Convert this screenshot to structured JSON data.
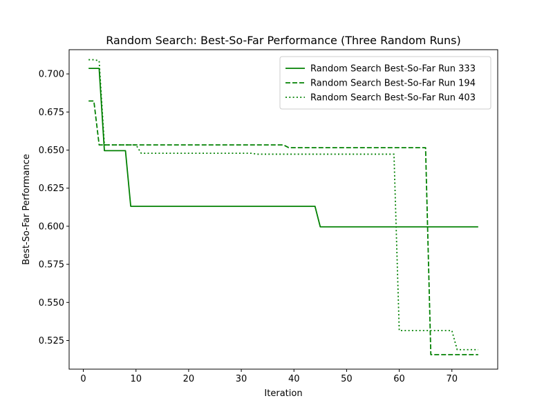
{
  "chart_data": {
    "type": "line",
    "title": "Random Search: Best-So-Far Performance (Three Random Runs)",
    "xlabel": "Iteration",
    "ylabel": "Best-So-Far Performance",
    "xlim": [
      -2.7,
      78.7
    ],
    "ylim": [
      0.5062,
      0.7159
    ],
    "xticks": [
      0,
      10,
      20,
      30,
      40,
      50,
      60,
      70
    ],
    "xtick_labels": [
      "0",
      "10",
      "20",
      "30",
      "40",
      "50",
      "60",
      "70"
    ],
    "yticks": [
      0.525,
      0.55,
      0.575,
      0.6,
      0.625,
      0.65,
      0.675,
      0.7
    ],
    "ytick_labels": [
      "0.525",
      "0.550",
      "0.575",
      "0.600",
      "0.625",
      "0.650",
      "0.675",
      "0.700"
    ],
    "grid": false,
    "legend_position": "upper right",
    "series": [
      {
        "name": "Random Search Best-So-Far Run 333",
        "color": "#008000",
        "dash": "solid",
        "points": [
          [
            1,
            0.7036
          ],
          [
            3,
            0.7036
          ],
          [
            4,
            0.6496
          ],
          [
            8,
            0.6496
          ],
          [
            9,
            0.6131
          ],
          [
            44,
            0.6131
          ],
          [
            45,
            0.5996
          ],
          [
            75,
            0.5996
          ]
        ]
      },
      {
        "name": "Random Search Best-So-Far Run 194",
        "color": "#008000",
        "dash": "dashed",
        "points": [
          [
            1,
            0.6822
          ],
          [
            2,
            0.6822
          ],
          [
            3,
            0.6534
          ],
          [
            38,
            0.6534
          ],
          [
            39,
            0.6516
          ],
          [
            65,
            0.6516
          ],
          [
            66,
            0.5157
          ],
          [
            75,
            0.5157
          ]
        ]
      },
      {
        "name": "Random Search Best-So-Far Run 403",
        "color": "#008000",
        "dash": "dotted",
        "points": [
          [
            1,
            0.7093
          ],
          [
            2,
            0.7093
          ],
          [
            3,
            0.7086
          ],
          [
            4,
            0.6534
          ],
          [
            10,
            0.6534
          ],
          [
            11,
            0.6479
          ],
          [
            32,
            0.6479
          ],
          [
            33,
            0.6473
          ],
          [
            59,
            0.6473
          ],
          [
            60,
            0.5315
          ],
          [
            70,
            0.5315
          ],
          [
            71,
            0.519
          ],
          [
            75,
            0.519
          ]
        ]
      }
    ]
  }
}
